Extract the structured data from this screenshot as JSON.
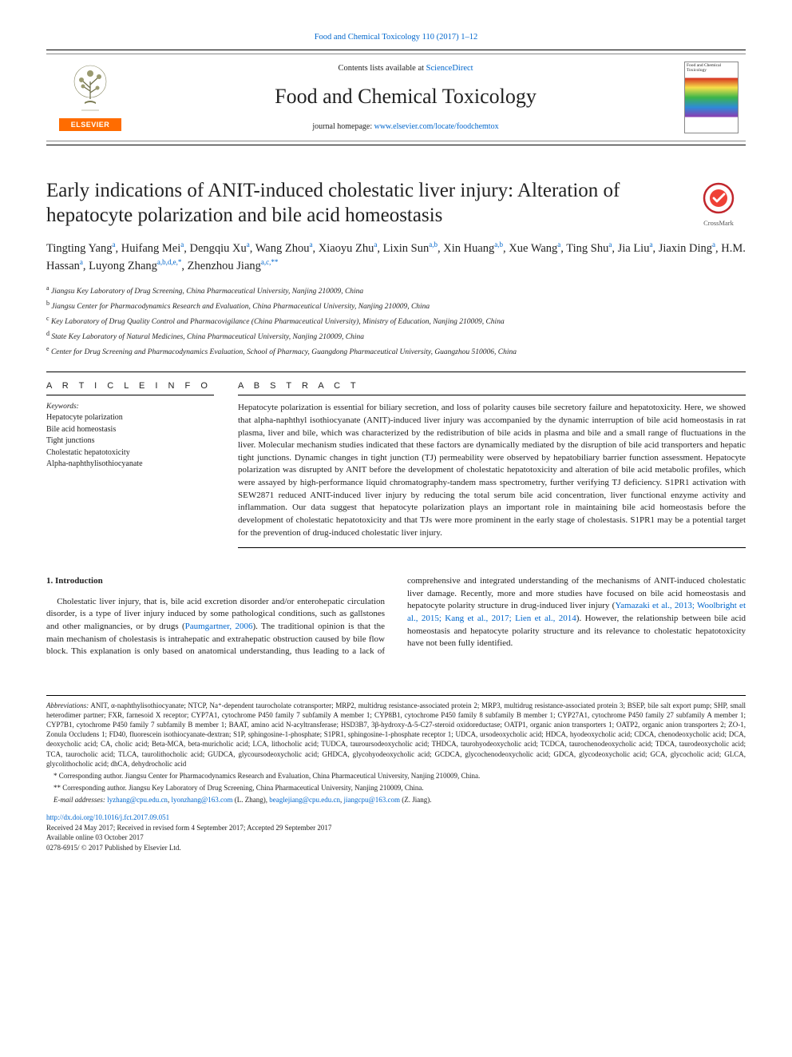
{
  "top_citation": "Food and Chemical Toxicology 110 (2017) 1–12",
  "masthead": {
    "contents_prefix": "Contents lists available at ",
    "contents_link": "ScienceDirect",
    "journal_name": "Food and Chemical Toxicology",
    "homepage_prefix": "journal homepage: ",
    "homepage_link": "www.elsevier.com/locate/foodchemtox",
    "elsevier_label": "ELSEVIER",
    "cover_title": "Food and Chemical Toxicology"
  },
  "crossmark_label": "CrossMark",
  "title": "Early indications of ANIT-induced cholestatic liver injury: Alteration of hepatocyte polarization and bile acid homeostasis",
  "authors_html_parts": [
    {
      "name": "Tingting Yang",
      "sup": "a"
    },
    {
      "name": "Huifang Mei",
      "sup": "a"
    },
    {
      "name": "Dengqiu Xu",
      "sup": "a"
    },
    {
      "name": "Wang Zhou",
      "sup": "a"
    },
    {
      "name": "Xiaoyu Zhu",
      "sup": "a"
    },
    {
      "name": "Lixin Sun",
      "sup": "a,b"
    },
    {
      "name": "Xin Huang",
      "sup": "a,b"
    },
    {
      "name": "Xue Wang",
      "sup": "a"
    },
    {
      "name": "Ting Shu",
      "sup": "a"
    },
    {
      "name": "Jia Liu",
      "sup": "a"
    },
    {
      "name": "Jiaxin Ding",
      "sup": "a"
    },
    {
      "name": "H.M. Hassan",
      "sup": "a"
    },
    {
      "name": "Luyong Zhang",
      "sup": "a,b,d,e,*"
    },
    {
      "name": "Zhenzhou Jiang",
      "sup": "a,c,**"
    }
  ],
  "affiliations": [
    {
      "key": "a",
      "text": "Jiangsu Key Laboratory of Drug Screening, China Pharmaceutical University, Nanjing 210009, China"
    },
    {
      "key": "b",
      "text": "Jiangsu Center for Pharmacodynamics Research and Evaluation, China Pharmaceutical University, Nanjing 210009, China"
    },
    {
      "key": "c",
      "text": "Key Laboratory of Drug Quality Control and Pharmacovigilance (China Pharmaceutical University), Ministry of Education, Nanjing 210009, China"
    },
    {
      "key": "d",
      "text": "State Key Laboratory of Natural Medicines, China Pharmaceutical University, Nanjing 210009, China"
    },
    {
      "key": "e",
      "text": "Center for Drug Screening and Pharmacodynamics Evaluation, School of Pharmacy, Guangdong Pharmaceutical University, Guangzhou 510006, China"
    }
  ],
  "sections": {
    "article_info": "A R T I C L E   I N F O",
    "abstract": "A B S T R A C T"
  },
  "keywords": {
    "head": "Keywords:",
    "items": [
      "Hepatocyte polarization",
      "Bile acid homeostasis",
      "Tight junctions",
      "Cholestatic hepatotoxicity",
      "Alpha-naphthylisothiocyanate"
    ]
  },
  "abstract_text": "Hepatocyte polarization is essential for biliary secretion, and loss of polarity causes bile secretory failure and hepatotoxicity. Here, we showed that alpha-naphthyl isothiocyanate (ANIT)-induced liver injury was accompanied by the dynamic interruption of bile acid homeostasis in rat plasma, liver and bile, which was characterized by the redistribution of bile acids in plasma and bile and a small range of fluctuations in the liver. Molecular mechanism studies indicated that these factors are dynamically mediated by the disruption of bile acid transporters and hepatic tight junctions. Dynamic changes in tight junction (TJ) permeability were observed by hepatobiliary barrier function assessment. Hepatocyte polarization was disrupted by ANIT before the development of cholestatic hepatotoxicity and alteration of bile acid metabolic profiles, which were assayed by high-performance liquid chromatography-tandem mass spectrometry, further verifying TJ deficiency. S1PR1 activation with SEW2871 reduced ANIT-induced liver injury by reducing the total serum bile acid concentration, liver functional enzyme activity and inflammation. Our data suggest that hepatocyte polarization plays an important role in maintaining bile acid homeostasis before the development of cholestatic hepatotoxicity and that TJs were more prominent in the early stage of cholestasis. S1PR1 may be a potential target for the prevention of drug-induced cholestatic liver injury.",
  "intro": {
    "head": "1. Introduction",
    "p1_a": "Cholestatic liver injury, that is, bile acid excretion disorder and/or enterohepatic circulation disorder, is a type of liver injury induced by some pathological conditions, such as gallstones and other malignancies, or by drugs (",
    "p1_cite": "Paumgartner, 2006",
    "p1_b": "). The traditional opinion is that the main mechanism of cholestasis is intrahepatic and extrahepatic obstruction caused by bile flow block. This explanation is only based on ",
    "p2_a": "anatomical understanding, thus leading to a lack of comprehensive and integrated understanding of the mechanisms of ANIT-induced cholestatic liver damage. Recently, more and more studies have focused on bile acid homeostasis and hepatocyte polarity structure in drug-induced liver injury (",
    "p2_cite": "Yamazaki et al., 2013; Woolbright et al., 2015; Kang et al., 2017; Lien et al., 2014",
    "p2_b": "). However, the relationship between bile acid homeostasis and hepatocyte polarity structure and its relevance to cholestatic hepatotoxicity have not been fully identified."
  },
  "footnotes": {
    "abbr_label": "Abbreviations:",
    "abbr_text": " ANIT, α-naphthylisothiocyanate; NTCP, Na⁺-dependent taurocholate cotransporter; MRP2, multidrug resistance-associated protein 2; MRP3, multidrug resistance-associated protein 3; BSEP, bile salt export pump; SHP, small heterodimer partner; FXR, farnesoid X receptor; CYP7A1, cytochrome P450 family 7 subfamily A member 1; CYP8B1, cytochrome P450 family 8 subfamily B member 1; CYP27A1, cytochrome P450 family 27 subfamily A member 1; CYP7B1, cytochrome P450 family 7 subfamily B member 1; BAAT, amino acid N-acyltransferase; HSD3B7, 3β-hydroxy-Δ-5-C27-steroid oxidoreductase; OATP1, organic anion transporters 1; OATP2, organic anion transporters 2; ZO-1, Zonula Occludens 1; FD40, fluorescein isothiocyanate-dextran; S1P, sphingosine-1-phosphate; S1PR1, sphingosine-1-phosphate receptor 1; UDCA, ursodeoxycholic acid; HDCA, hyodeoxycholic acid; CDCA, chenodeoxycholic acid; DCA, deoxycholic acid; CA, cholic acid; Beta-MCA, beta-muricholic acid; LCA, lithocholic acid; TUDCA, tauroursodeoxycholic acid; THDCA, taurohyodeoxycholic acid; TCDCA, taurochenodeoxycholic acid; TDCA, taurodeoxycholic acid; TCA, taurocholic acid; TLCA, taurolithocholic acid; GUDCA, glycoursodeoxycholic acid; GHDCA, glycohyodeoxycholic acid; GCDCA, glycochenodeoxycholic acid; GDCA, glycodeoxycholic acid; GCA, glycocholic acid; GLCA, glycolithocholic acid; dhCA, dehydrocholic acid",
    "corr1": "* Corresponding author. Jiangsu Center for Pharmacodynamics Research and Evaluation, China Pharmaceutical University, Nanjing 210009, China.",
    "corr2": "** Corresponding author. Jiangsu Key Laboratory of Drug Screening, China Pharmaceutical University, Nanjing 210009, China.",
    "email_label": "E-mail addresses: ",
    "emails": [
      {
        "addr": "lyzhang@cpu.edu.cn",
        "tail": ", "
      },
      {
        "addr": "lyonzhang@163.com",
        "tail": " (L. Zhang), "
      },
      {
        "addr": "beaglejiang@cpu.edu.cn",
        "tail": ", "
      },
      {
        "addr": "jiangcpu@163.com",
        "tail": " (Z. Jiang)."
      }
    ]
  },
  "pubinfo": {
    "doi": "http://dx.doi.org/10.1016/j.fct.2017.09.051",
    "received": "Received 24 May 2017; Received in revised form 4 September 2017; Accepted 29 September 2017",
    "online": "Available online 03 October 2017",
    "copyright": "0278-6915/ © 2017 Published by Elsevier Ltd."
  },
  "colors": {
    "link": "#0066cc",
    "elsevier_orange": "#ff6c00",
    "crossmark_ring": "#c1272d",
    "crossmark_fill": "#ef4136"
  }
}
